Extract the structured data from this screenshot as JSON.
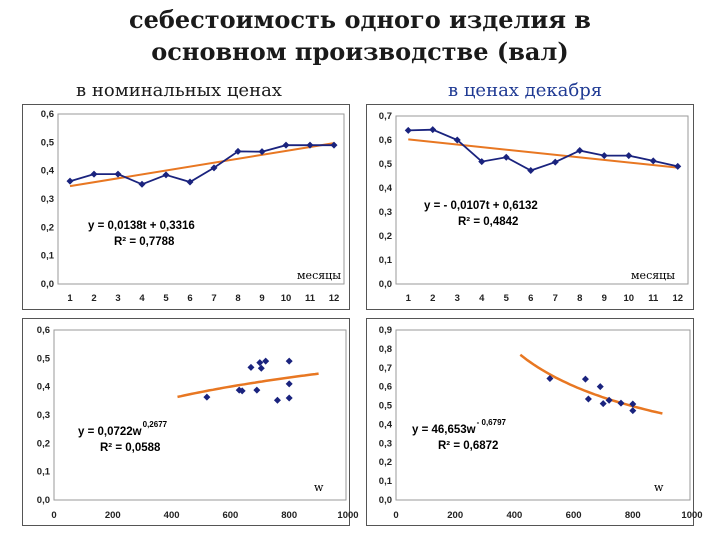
{
  "title_lines": [
    "себестоимость одного изделия в",
    "основном производстве (вал)"
  ],
  "subtitles": {
    "left": "в номинальных ценах",
    "right": "в ценах декабря"
  },
  "colors": {
    "series": "#1a237e",
    "trend": "#e87722",
    "plot_border": "#9a9a9a",
    "frame": "#555555"
  },
  "chart_data": [
    {
      "type": "line",
      "x": [
        1,
        2,
        3,
        4,
        5,
        6,
        7,
        8,
        9,
        10,
        11,
        12
      ],
      "series": [
        {
          "values": [
            0.363,
            0.388,
            0.388,
            0.352,
            0.385,
            0.36,
            0.41,
            0.468,
            0.467,
            0.49,
            0.49,
            0.49
          ]
        }
      ],
      "trendline": {
        "kind": "linear",
        "slope": 0.0138,
        "intercept": 0.3316
      },
      "equation": "y = 0,0138t + 0,3316",
      "r2": "R² = 0,7788",
      "xlabel": "месяцы",
      "xlim": [
        0.5,
        12.5
      ],
      "ylim": [
        0,
        0.6
      ],
      "xticks": [
        "1",
        "2",
        "3",
        "4",
        "5",
        "6",
        "7",
        "8",
        "9",
        "10",
        "11",
        "12"
      ],
      "yticks": [
        "0,0",
        "0,1",
        "0,2",
        "0,3",
        "0,4",
        "0,5",
        "0,6"
      ],
      "grid": false
    },
    {
      "type": "line",
      "x": [
        1,
        2,
        3,
        4,
        5,
        6,
        7,
        8,
        9,
        10,
        11,
        12
      ],
      "series": [
        {
          "values": [
            0.64,
            0.643,
            0.6,
            0.51,
            0.528,
            0.473,
            0.508,
            0.556,
            0.535,
            0.535,
            0.513,
            0.49
          ]
        }
      ],
      "trendline": {
        "kind": "linear",
        "slope": -0.0107,
        "intercept": 0.6132
      },
      "equation": "y = - 0,0107t + 0,6132",
      "r2": "R² = 0,4842",
      "xlabel": "месяцы",
      "xlim": [
        0.5,
        12.5
      ],
      "ylim": [
        0,
        0.7
      ],
      "xticks": [
        "1",
        "2",
        "3",
        "4",
        "5",
        "6",
        "7",
        "8",
        "9",
        "10",
        "11",
        "12"
      ],
      "yticks": [
        "0,0",
        "0,1",
        "0,2",
        "0,3",
        "0,4",
        "0,5",
        "0,6",
        "0,7"
      ],
      "grid": false
    },
    {
      "type": "scatter",
      "points": [
        [
          520,
          0.363
        ],
        [
          630,
          0.388
        ],
        [
          640,
          0.385
        ],
        [
          670,
          0.468
        ],
        [
          690,
          0.388
        ],
        [
          700,
          0.485
        ],
        [
          705,
          0.465
        ],
        [
          720,
          0.49
        ],
        [
          760,
          0.352
        ],
        [
          800,
          0.49
        ],
        [
          800,
          0.41
        ],
        [
          800,
          0.36
        ]
      ],
      "trendline": {
        "kind": "power",
        "coef": 0.0722,
        "exp": 0.2677,
        "from": 420,
        "to": 900
      },
      "equation": "y = 0,0722w",
      "equation_exp": "0,2677",
      "r2": "R² = 0,0588",
      "xlabel": "w",
      "xlim": [
        0,
        1000
      ],
      "ylim": [
        0,
        0.6
      ],
      "xticks": [
        "0",
        "200",
        "400",
        "600",
        "800",
        "1000"
      ],
      "yticks": [
        "0,0",
        "0,1",
        "0,2",
        "0,3",
        "0,4",
        "0,5",
        "0,6"
      ],
      "grid": false
    },
    {
      "type": "scatter",
      "points": [
        [
          520,
          0.643
        ],
        [
          640,
          0.64
        ],
        [
          650,
          0.535
        ],
        [
          690,
          0.6
        ],
        [
          700,
          0.51
        ],
        [
          720,
          0.528
        ],
        [
          760,
          0.513
        ],
        [
          800,
          0.473
        ],
        [
          800,
          0.508
        ]
      ],
      "trendline": {
        "kind": "power",
        "coef": 46.653,
        "exp": -0.6797,
        "from": 420,
        "to": 900
      },
      "equation": "y = 46,653w",
      "equation_exp": "- 0,6797",
      "r2": "R² = 0,6872",
      "xlabel": "w",
      "xlim": [
        0,
        1000
      ],
      "ylim": [
        0,
        0.9
      ],
      "xticks": [
        "0",
        "200",
        "400",
        "600",
        "800",
        "1000"
      ],
      "yticks": [
        "0,0",
        "0,1",
        "0,2",
        "0,3",
        "0,4",
        "0,5",
        "0,6",
        "0,7",
        "0,8",
        "0,9"
      ],
      "grid": false
    }
  ]
}
